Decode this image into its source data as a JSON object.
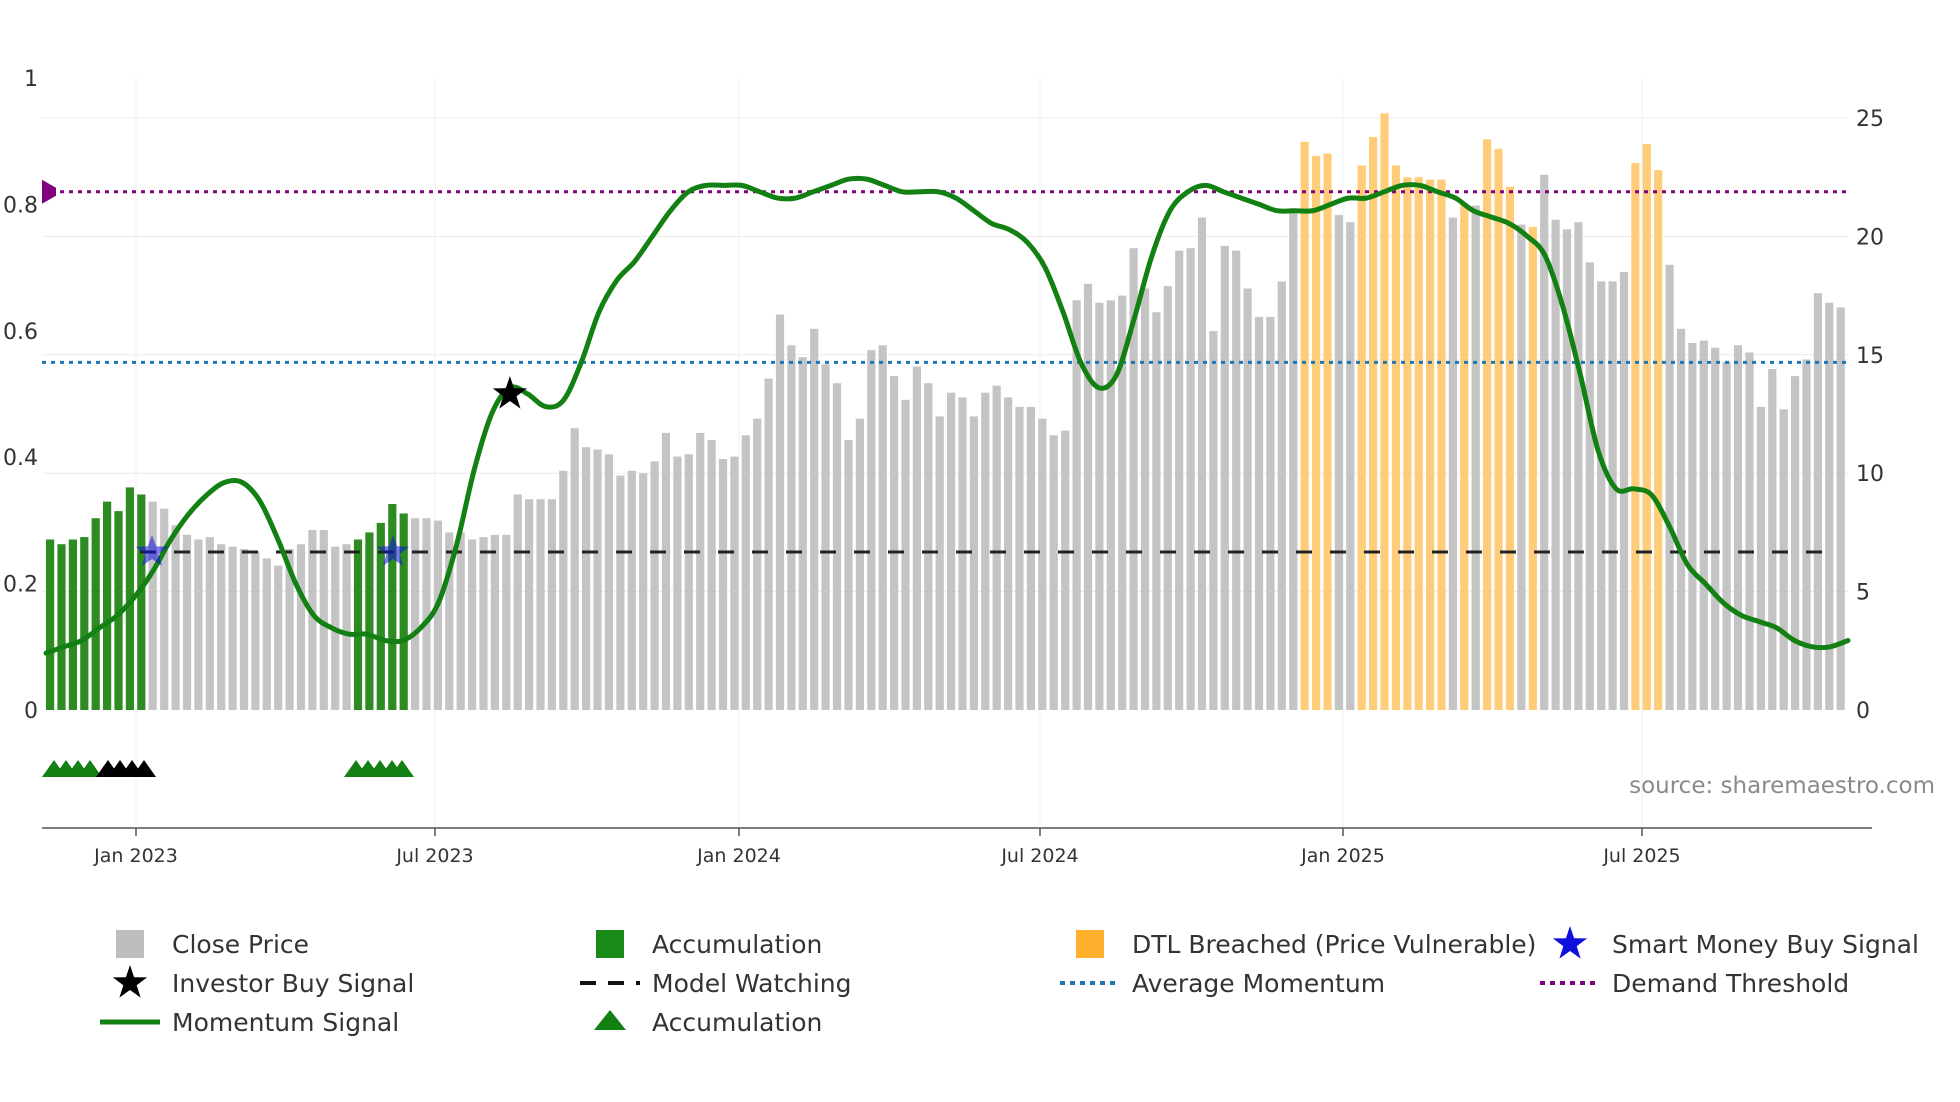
{
  "chart_data": {
    "type": "bar",
    "title": "",
    "source": "source: sharemaestro.com",
    "x_ticks": [
      "Jan 2023",
      "Jul 2023",
      "Jan 2024",
      "Jul 2024",
      "Jan 2025",
      "Jul 2025"
    ],
    "left_axis": {
      "ylim": [
        0,
        1
      ],
      "ticks": [
        "0",
        "0.2",
        "0.4",
        "0.6",
        "0.8",
        "1"
      ]
    },
    "right_axis": {
      "ylim": [
        0,
        25
      ],
      "ticks": [
        "0",
        "5",
        "10",
        "15",
        "20",
        "25"
      ]
    },
    "colors": {
      "close": "#c4c4c4",
      "accumulation": "#2e8b22",
      "dtl": "#ffcc7a",
      "momentum": "#128012",
      "avg": "#1f77b4",
      "demand": "#800080",
      "star_black": "#000000",
      "star_blue": "#1010dd",
      "watch": "#222222"
    },
    "close_price": [
      7.2,
      7.0,
      7.2,
      7.3,
      8.1,
      8.8,
      8.4,
      9.4,
      9.1,
      8.8,
      8.5,
      7.8,
      7.4,
      7.2,
      7.3,
      7.0,
      6.9,
      6.8,
      6.7,
      6.4,
      6.1,
      6.8,
      7.0,
      7.6,
      7.6,
      6.9,
      7.0,
      7.2,
      7.5,
      7.9,
      8.7,
      8.3,
      8.1,
      8.1,
      8.0,
      7.5,
      7.5,
      7.2,
      7.3,
      7.4,
      7.4,
      9.1,
      8.9,
      8.9,
      8.9,
      10.1,
      11.9,
      11.1,
      11.0,
      10.8,
      9.9,
      10.1,
      10.0,
      10.5,
      11.7,
      10.7,
      10.8,
      11.7,
      11.4,
      10.6,
      10.7,
      11.6,
      12.3,
      14.0,
      16.7,
      15.4,
      14.9,
      16.1,
      14.6,
      13.8,
      11.4,
      12.3,
      15.2,
      15.4,
      14.1,
      13.1,
      14.5,
      13.8,
      12.4,
      13.4,
      13.2,
      12.4,
      13.4,
      13.7,
      13.2,
      12.8,
      12.8,
      12.3,
      11.6,
      11.8,
      17.3,
      18.0,
      17.2,
      17.3,
      17.5,
      19.5,
      17.8,
      16.8,
      17.9,
      19.4,
      19.5,
      20.8,
      16.0,
      19.6,
      19.4,
      17.8,
      16.6,
      16.6,
      18.1,
      21.1,
      24.0,
      23.4,
      23.5,
      20.9,
      20.6,
      23.0,
      24.2,
      25.2,
      23.0,
      22.5,
      22.5,
      22.4,
      22.4,
      20.8,
      21.4,
      21.3,
      24.1,
      23.7,
      22.1,
      20.5,
      20.4,
      22.6,
      20.7,
      20.3,
      20.6,
      18.9,
      18.1,
      18.1,
      18.5,
      23.1,
      23.9,
      22.8,
      18.8,
      16.1,
      15.5,
      15.6,
      15.3,
      14.7,
      15.4,
      15.1,
      12.8,
      14.4,
      12.7,
      14.1,
      14.8,
      17.6,
      17.2,
      17.0
    ],
    "bar_category": [
      "A",
      "A",
      "A",
      "A",
      "A",
      "A",
      "A",
      "A",
      "A",
      "C",
      "C",
      "C",
      "C",
      "C",
      "C",
      "C",
      "C",
      "C",
      "C",
      "C",
      "C",
      "C",
      "C",
      "C",
      "C",
      "C",
      "C",
      "A",
      "A",
      "A",
      "A",
      "A",
      "C",
      "C",
      "C",
      "C",
      "C",
      "C",
      "C",
      "C",
      "C",
      "C",
      "C",
      "C",
      "C",
      "C",
      "C",
      "C",
      "C",
      "C",
      "C",
      "C",
      "C",
      "C",
      "C",
      "C",
      "C",
      "C",
      "C",
      "C",
      "C",
      "C",
      "C",
      "C",
      "C",
      "C",
      "C",
      "C",
      "C",
      "C",
      "C",
      "C",
      "C",
      "C",
      "C",
      "C",
      "C",
      "C",
      "C",
      "C",
      "C",
      "C",
      "C",
      "C",
      "C",
      "C",
      "C",
      "C",
      "C",
      "C",
      "C",
      "C",
      "C",
      "C",
      "C",
      "C",
      "C",
      "C",
      "C",
      "C",
      "C",
      "C",
      "C",
      "C",
      "C",
      "C",
      "C",
      "C",
      "C",
      "C",
      "D",
      "D",
      "D",
      "C",
      "C",
      "D",
      "D",
      "D",
      "D",
      "D",
      "D",
      "D",
      "D",
      "C",
      "D",
      "C",
      "D",
      "D",
      "D",
      "C",
      "D",
      "C",
      "C",
      "C",
      "C",
      "C",
      "C",
      "C",
      "C",
      "D",
      "D",
      "D",
      "C",
      "C",
      "C",
      "C",
      "C",
      "C",
      "C",
      "C",
      "C",
      "C",
      "C",
      "C",
      "C",
      "C",
      "C",
      "C"
    ],
    "momentum_signal": [
      0.09,
      0.1,
      0.11,
      0.13,
      0.15,
      0.18,
      0.22,
      0.27,
      0.31,
      0.34,
      0.36,
      0.36,
      0.33,
      0.27,
      0.2,
      0.15,
      0.13,
      0.12,
      0.12,
      0.11,
      0.11,
      0.13,
      0.17,
      0.26,
      0.38,
      0.47,
      0.51,
      0.5,
      0.48,
      0.49,
      0.55,
      0.63,
      0.68,
      0.71,
      0.75,
      0.79,
      0.82,
      0.83,
      0.83,
      0.83,
      0.82,
      0.81,
      0.81,
      0.82,
      0.83,
      0.84,
      0.84,
      0.83,
      0.82,
      0.82,
      0.82,
      0.81,
      0.79,
      0.77,
      0.76,
      0.74,
      0.7,
      0.63,
      0.55,
      0.51,
      0.53,
      0.62,
      0.72,
      0.79,
      0.82,
      0.83,
      0.82,
      0.81,
      0.8,
      0.79,
      0.79,
      0.79,
      0.8,
      0.81,
      0.81,
      0.82,
      0.83,
      0.83,
      0.82,
      0.81,
      0.79,
      0.78,
      0.77,
      0.75,
      0.72,
      0.64,
      0.53,
      0.41,
      0.35,
      0.35,
      0.34,
      0.29,
      0.23,
      0.2,
      0.17,
      0.15,
      0.14,
      0.13,
      0.11,
      0.1,
      0.1,
      0.11
    ],
    "average_momentum": 0.55,
    "demand_threshold": 0.82,
    "model_watching_level": 0.25,
    "investor_buy_signal": {
      "index": 26,
      "value": 0.5
    },
    "smart_money_buy_signals": [
      {
        "index": 10,
        "value": 0.25
      },
      {
        "index": 31,
        "value": 0.25
      }
    ],
    "accumulation_markers": [
      0,
      1,
      2,
      3,
      4,
      5,
      27,
      28,
      29,
      30,
      31
    ],
    "watch_markers": [
      4,
      5,
      6,
      7,
      8,
      9
    ],
    "legend": [
      {
        "label": "Close Price",
        "icon": "square-icon",
        "color": "#bdbdbd"
      },
      {
        "label": "Accumulation",
        "icon": "square-icon",
        "color": "#1a8a1a"
      },
      {
        "label": "DTL Breached (Price Vulnerable)",
        "icon": "square-icon",
        "color": "#ffb02e"
      },
      {
        "label": "Smart Money Buy Signal",
        "icon": "star-icon",
        "color": "#1010dd"
      },
      {
        "label": "Investor Buy Signal",
        "icon": "star-icon",
        "color": "#000000"
      },
      {
        "label": "Model Watching",
        "icon": "dash-line-icon",
        "color": "#111111"
      },
      {
        "label": "Average Momentum",
        "icon": "dotted-line-icon",
        "color": "#1f77b4"
      },
      {
        "label": "Demand Threshold",
        "icon": "dotted-line-icon",
        "color": "#800080"
      },
      {
        "label": "Momentum Signal",
        "icon": "solid-line-icon",
        "color": "#128012"
      },
      {
        "label": "Accumulation",
        "icon": "triangle-icon",
        "color": "#128012"
      }
    ]
  }
}
